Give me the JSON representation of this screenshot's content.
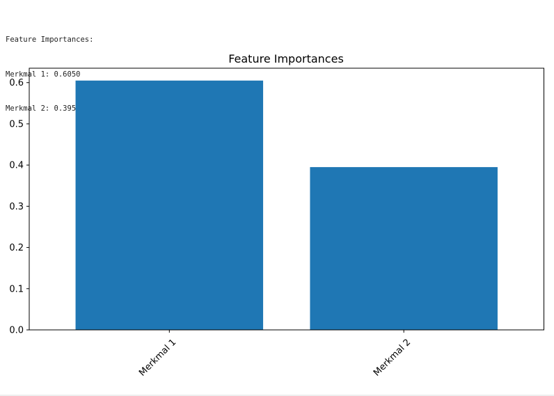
{
  "console": {
    "lines": [
      "Feature Importances:",
      "Merkmal 1: 0.6050",
      "Merkmal 2: 0.3950"
    ]
  },
  "chart_data": {
    "type": "bar",
    "title": "Feature Importances",
    "xlabel": "",
    "ylabel": "",
    "categories": [
      "Merkmal 1",
      "Merkmal 2"
    ],
    "values": [
      0.605,
      0.395
    ],
    "ylim": [
      0,
      0.635
    ],
    "yticks": [
      0.0,
      0.1,
      0.2,
      0.3,
      0.4,
      0.5,
      0.6
    ],
    "ytick_labels": [
      "0.0",
      "0.1",
      "0.2",
      "0.3",
      "0.4",
      "0.5",
      "0.6"
    ],
    "xtick_rotation": 45,
    "grid": false,
    "bar_color": "#1f77b4"
  }
}
